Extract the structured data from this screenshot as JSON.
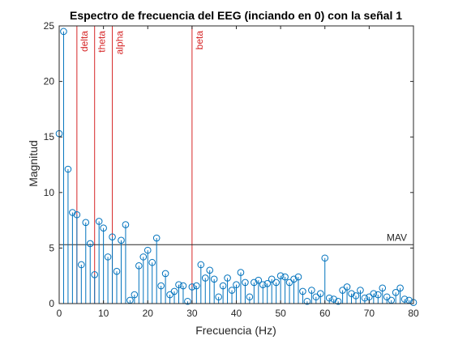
{
  "chart_data": {
    "type": "stem",
    "title": "Espectro de frecuencia del EEG (inciando en 0) con la señal 1",
    "xlabel": "Frecuencia (Hz)",
    "ylabel": "Magnitud",
    "xlim": [
      0,
      80
    ],
    "ylim": [
      0,
      25
    ],
    "xticks": [
      0,
      10,
      20,
      30,
      40,
      50,
      60,
      70,
      80
    ],
    "yticks": [
      0,
      5,
      10,
      15,
      20,
      25
    ],
    "grid": false,
    "stem_color": "#0072BD",
    "band_color": "#D62728",
    "mav_color": "#262626",
    "band_lines": [
      {
        "x": 4,
        "label": "delta"
      },
      {
        "x": 8,
        "label": "theta"
      },
      {
        "x": 12,
        "label": "alpha"
      },
      {
        "x": 30,
        "label": "beta"
      }
    ],
    "mav": {
      "value": 5.3,
      "label": "MAV"
    },
    "points": [
      [
        0,
        15.3
      ],
      [
        1,
        24.5
      ],
      [
        2,
        12.1
      ],
      [
        3,
        8.2
      ],
      [
        4,
        8.0
      ],
      [
        5,
        3.5
      ],
      [
        6,
        7.3
      ],
      [
        7,
        5.4
      ],
      [
        8,
        2.6
      ],
      [
        9,
        7.4
      ],
      [
        10,
        6.8
      ],
      [
        11,
        4.2
      ],
      [
        12,
        6.0
      ],
      [
        13,
        2.9
      ],
      [
        14,
        5.7
      ],
      [
        15,
        7.1
      ],
      [
        16,
        0.3
      ],
      [
        17,
        0.8
      ],
      [
        18,
        3.4
      ],
      [
        19,
        4.2
      ],
      [
        20,
        4.8
      ],
      [
        21,
        3.7
      ],
      [
        22,
        5.9
      ],
      [
        23,
        1.6
      ],
      [
        24,
        2.7
      ],
      [
        25,
        0.8
      ],
      [
        26,
        1.1
      ],
      [
        27,
        1.7
      ],
      [
        28,
        1.6
      ],
      [
        29,
        0.2
      ],
      [
        30,
        1.5
      ],
      [
        31,
        1.6
      ],
      [
        32,
        3.5
      ],
      [
        33,
        2.3
      ],
      [
        34,
        3.0
      ],
      [
        35,
        2.2
      ],
      [
        36,
        0.6
      ],
      [
        37,
        1.6
      ],
      [
        38,
        2.3
      ],
      [
        39,
        1.2
      ],
      [
        40,
        1.7
      ],
      [
        41,
        2.8
      ],
      [
        42,
        1.9
      ],
      [
        43,
        0.6
      ],
      [
        44,
        1.9
      ],
      [
        45,
        2.1
      ],
      [
        46,
        1.7
      ],
      [
        47,
        1.8
      ],
      [
        48,
        2.2
      ],
      [
        49,
        1.9
      ],
      [
        50,
        2.5
      ],
      [
        51,
        2.4
      ],
      [
        52,
        1.9
      ],
      [
        53,
        2.2
      ],
      [
        54,
        2.4
      ],
      [
        55,
        1.1
      ],
      [
        56,
        0.2
      ],
      [
        57,
        1.2
      ],
      [
        58,
        0.6
      ],
      [
        59,
        0.9
      ],
      [
        60,
        4.1
      ],
      [
        61,
        0.5
      ],
      [
        62,
        0.4
      ],
      [
        63,
        0.2
      ],
      [
        64,
        1.2
      ],
      [
        65,
        1.5
      ],
      [
        66,
        0.9
      ],
      [
        67,
        0.7
      ],
      [
        68,
        1.2
      ],
      [
        69,
        0.5
      ],
      [
        70,
        0.6
      ],
      [
        71,
        0.9
      ],
      [
        72,
        0.8
      ],
      [
        73,
        1.4
      ],
      [
        74,
        0.6
      ],
      [
        75,
        0.3
      ],
      [
        76,
        1.0
      ],
      [
        77,
        1.4
      ],
      [
        78,
        0.4
      ],
      [
        79,
        0.3
      ],
      [
        80,
        0.1
      ]
    ]
  }
}
